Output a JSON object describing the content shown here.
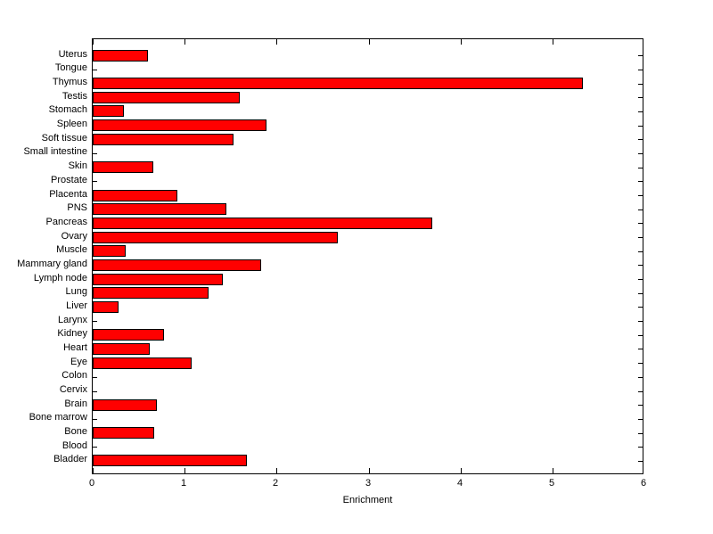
{
  "figure": {
    "background_color": "#ffffff",
    "plot_background_color": "#ffffff",
    "axis_color": "#000000"
  },
  "chart_data": {
    "type": "bar",
    "orientation": "horizontal",
    "title": "",
    "xlabel": "Enrichment",
    "ylabel": "",
    "xlim": [
      0,
      6
    ],
    "xticks": [
      "0",
      "1",
      "2",
      "3",
      "4",
      "5",
      "6"
    ],
    "grid": false,
    "legend": false,
    "bar_color": "#ff0000",
    "bar_edge_color": "#000000",
    "categories": [
      "Uterus",
      "Tongue",
      "Thymus",
      "Testis",
      "Stomach",
      "Spleen",
      "Soft tissue",
      "Small intestine",
      "Skin",
      "Prostate",
      "Placenta",
      "PNS",
      "Pancreas",
      "Ovary",
      "Muscle",
      "Mammary gland",
      "Lymph node",
      "Lung",
      "Liver",
      "Larynx",
      "Kidney",
      "Heart",
      "Eye",
      "Colon",
      "Cervix",
      "Brain",
      "Bone marrow",
      "Bone",
      "Blood",
      "Bladder"
    ],
    "values": [
      0.6,
      0,
      5.33,
      1.6,
      0.34,
      1.89,
      1.53,
      0,
      0.66,
      0,
      0.92,
      1.45,
      3.69,
      2.67,
      0.36,
      1.83,
      1.42,
      1.26,
      0.28,
      0,
      0.78,
      0.62,
      1.08,
      0,
      0,
      0.7,
      0,
      0.67,
      0,
      1.68
    ],
    "categories_order_note": "listed top to bottom as displayed"
  }
}
